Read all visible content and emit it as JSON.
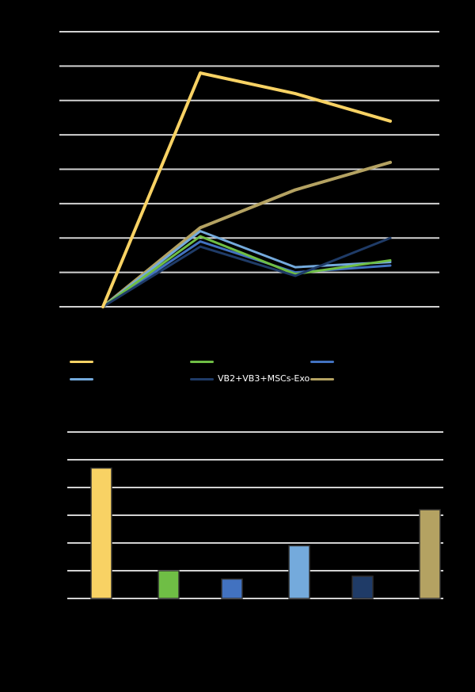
{
  "page": {
    "background": "#000000"
  },
  "colors": {
    "gridline": "#D2D2D2",
    "bar_border": "#303030",
    "legend_text": "#FFFFFF"
  },
  "legend": {
    "items": [
      {
        "id": "series-yellow",
        "color": "#F8D264",
        "label": ""
      },
      {
        "id": "series-green",
        "color": "#6FBE45",
        "label": ""
      },
      {
        "id": "series-blue",
        "color": "#4272C0",
        "label": ""
      },
      {
        "id": "series-lightblue",
        "color": "#74AADC",
        "label": ""
      },
      {
        "id": "series-navy",
        "color": "#1F3B67",
        "label": "VB2+VB3+MSCs-Exo"
      },
      {
        "id": "series-tan",
        "color": "#B4A262",
        "label": ""
      }
    ]
  },
  "chart_data": [
    {
      "type": "line",
      "title": "",
      "xlabel": "",
      "ylabel": "",
      "x": [
        0,
        1,
        2,
        3
      ],
      "xticklabels": [
        "",
        "",
        "",
        ""
      ],
      "ylim": [
        0,
        8
      ],
      "grid": true,
      "gridline_count": 9,
      "units": "gridline-intervals (axis tick labels not visible in image)",
      "series": [
        {
          "name": "series-tan",
          "color": "#B4A262",
          "width": 4,
          "values": [
            0,
            2.3,
            3.4,
            4.2
          ]
        },
        {
          "name": "series-lightblue",
          "color": "#74AADC",
          "width": 3,
          "values": [
            0,
            2.2,
            1.15,
            1.3
          ]
        },
        {
          "name": "series-blue",
          "color": "#4272C0",
          "width": 3,
          "values": [
            0,
            1.9,
            1.0,
            1.2
          ]
        },
        {
          "name": "series-green",
          "color": "#6FBE45",
          "width": 3,
          "values": [
            0,
            2.05,
            0.95,
            1.35
          ]
        },
        {
          "name": "series-navy",
          "color": "#1F3B67",
          "width": 3,
          "values": [
            0,
            1.75,
            0.9,
            2.0
          ]
        },
        {
          "name": "series-yellow",
          "color": "#F8D264",
          "width": 4,
          "values": [
            0,
            6.8,
            6.2,
            5.4
          ]
        }
      ]
    },
    {
      "type": "bar",
      "title": "",
      "xlabel": "",
      "ylabel": "",
      "categories": [
        "",
        "",
        "",
        "",
        "",
        ""
      ],
      "ylim": [
        0,
        6
      ],
      "grid": true,
      "gridline_count": 7,
      "units": "gridline-intervals (axis tick labels not visible in image)",
      "values": [
        4.7,
        1.0,
        0.7,
        1.9,
        0.8,
        3.2
      ],
      "colors": [
        "#F8D264",
        "#6FBE45",
        "#4272C0",
        "#74AADC",
        "#1F3B67",
        "#B4A262"
      ]
    }
  ]
}
